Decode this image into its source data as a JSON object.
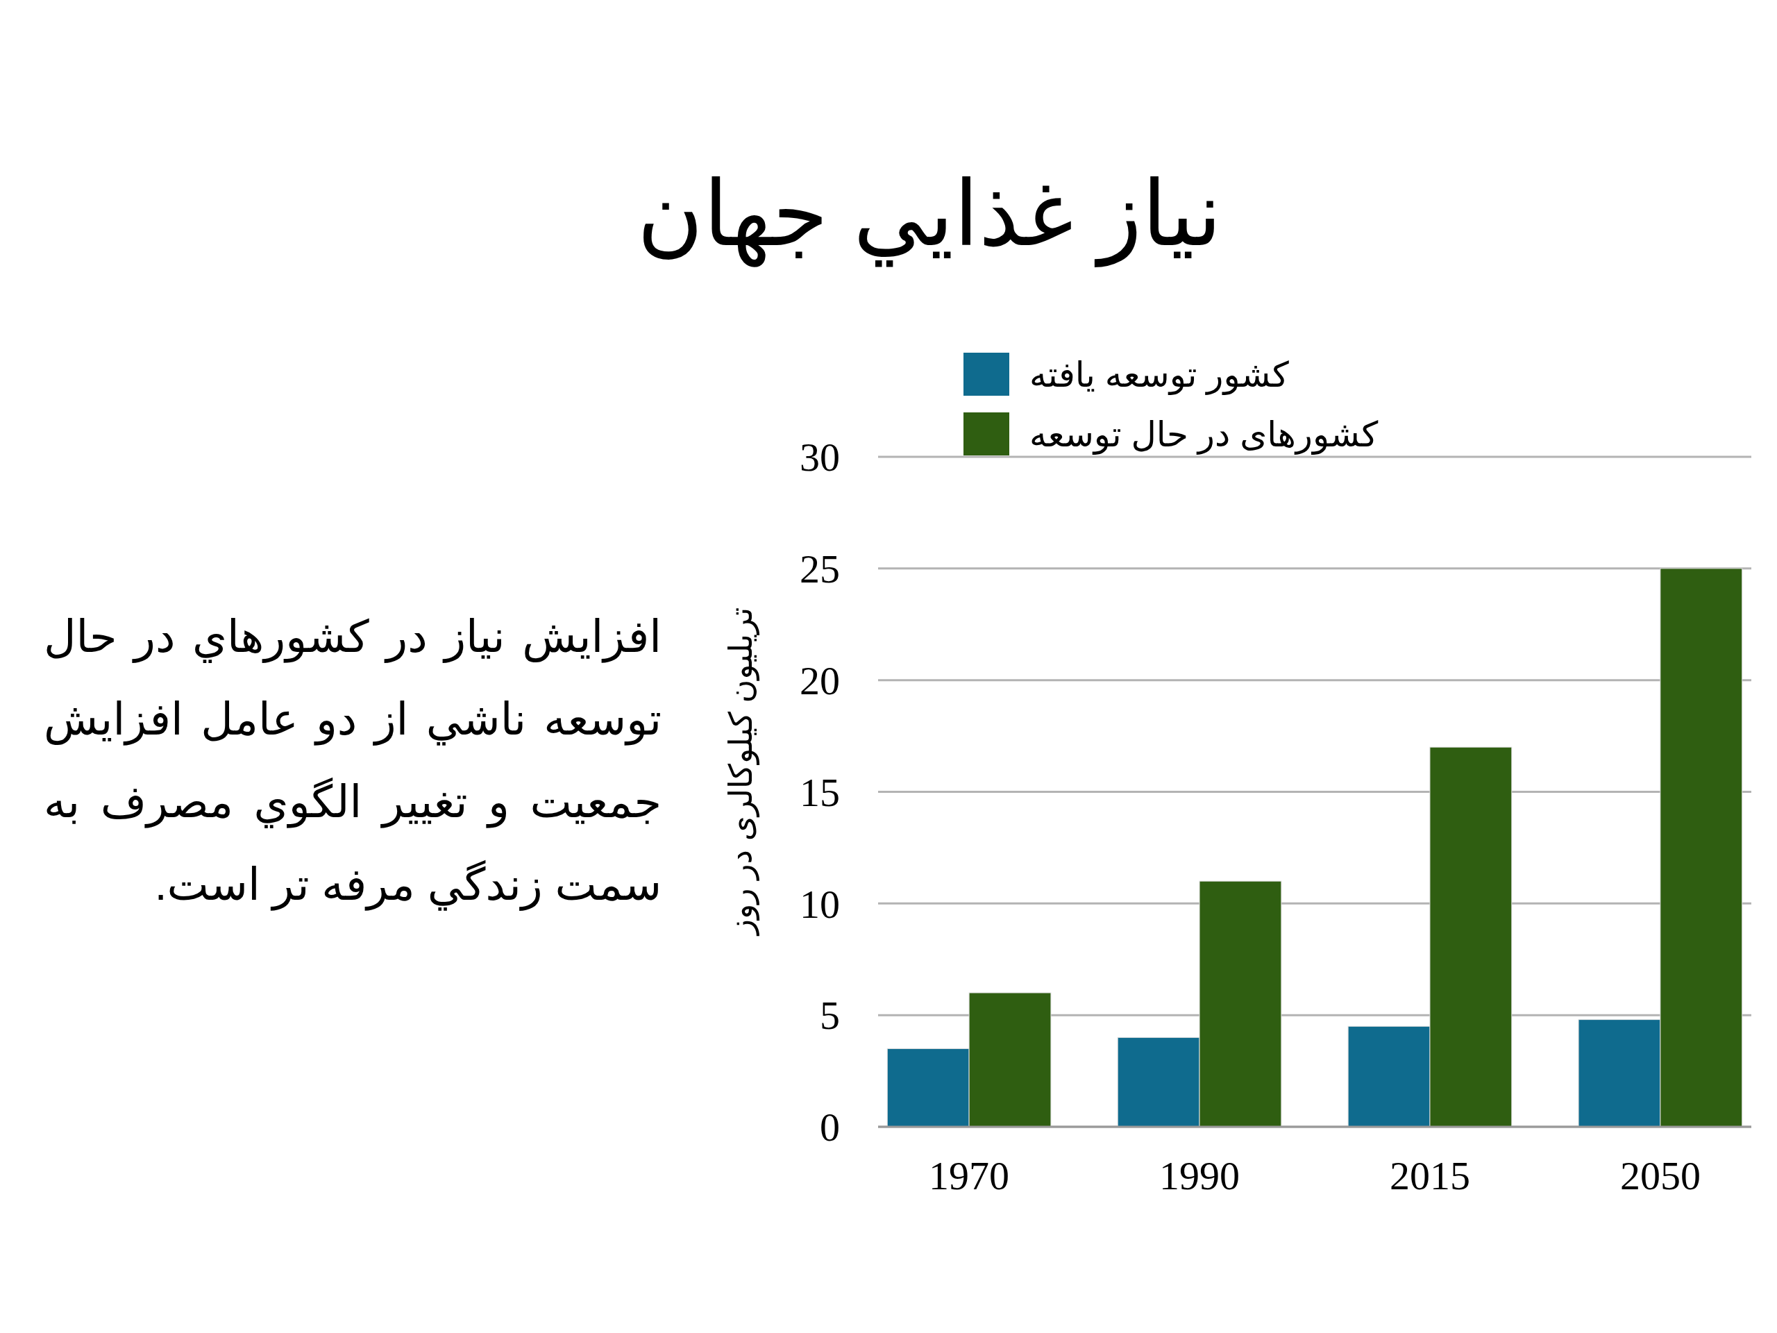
{
  "chart_data": {
    "type": "bar",
    "title": "نياز غذايي جهان",
    "ylabel": "تریلیون کیلوکالری در روز",
    "categories": [
      "1970",
      "1990",
      "2015",
      "2050"
    ],
    "series": [
      {
        "name": "کشور توسعه یافته",
        "color": "#0f6b8e",
        "values": [
          3.5,
          4,
          4.5,
          4.8
        ]
      },
      {
        "name": "کشورهای در حال توسعه",
        "color": "#2f5e11",
        "values": [
          6,
          11,
          17,
          25
        ]
      }
    ],
    "ylim": [
      0,
      30
    ],
    "yticks": [
      0,
      5,
      10,
      15,
      20,
      25,
      30
    ],
    "grid": "y",
    "legend": "top left",
    "annotations": [
      "افزايش نياز در كشورهاي در حال توسعه ناشي از دو عامل افزايش جمعيت و تغيير الگوي مصرف به سمت زندگي مرفه تر است."
    ]
  }
}
